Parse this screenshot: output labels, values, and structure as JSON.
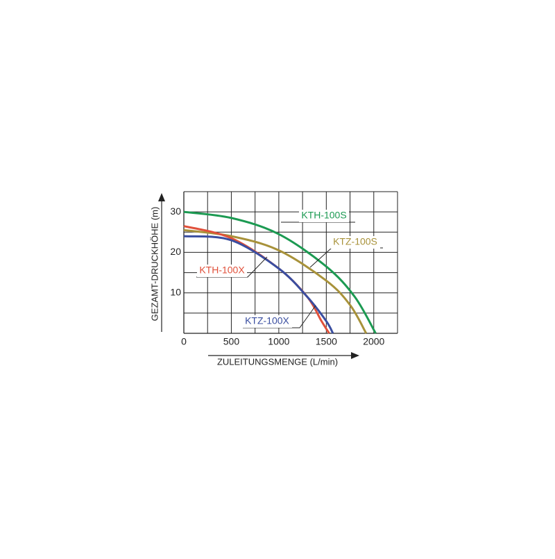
{
  "chart_data": {
    "type": "line",
    "x_label": "ZULEITUNGSMENGE (L/min)",
    "y_label": "GEZAMT-DRUCKHÖHE (m)",
    "xlim": [
      0,
      2250
    ],
    "xticks": [
      0,
      500,
      1000,
      1500,
      2000
    ],
    "x_minor_ticks": [
      250,
      750,
      1250,
      1750,
      2250
    ],
    "ylim": [
      0,
      35
    ],
    "yticks": [
      10,
      20,
      30
    ],
    "y_minor_ticks": [
      5,
      15,
      25,
      35
    ],
    "grid": true,
    "series": [
      {
        "name": "KTH-100S",
        "color": "#1c9a52",
        "x": [
          0,
          500,
          1000,
          1500,
          1800,
          2020
        ],
        "values": [
          30,
          28.5,
          24.5,
          16.5,
          9,
          0
        ]
      },
      {
        "name": "KTZ-100S",
        "color": "#a8923a",
        "x": [
          0,
          500,
          1000,
          1500,
          1750,
          1920
        ],
        "values": [
          25.5,
          24,
          20.5,
          13,
          7,
          0
        ]
      },
      {
        "name": "KTH-100X",
        "color": "#e0503a",
        "x": [
          0,
          500,
          1000,
          1300,
          1450,
          1530
        ],
        "values": [
          26.5,
          23.5,
          16,
          9,
          3,
          0
        ]
      },
      {
        "name": "KTZ-100X",
        "color": "#3a4ea0",
        "x": [
          0,
          500,
          1000,
          1300,
          1500,
          1570
        ],
        "values": [
          24,
          23,
          16,
          9,
          3,
          0
        ]
      }
    ]
  }
}
